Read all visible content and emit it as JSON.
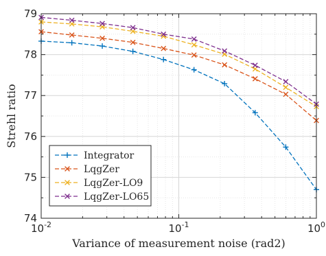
{
  "chart_data": {
    "type": "line",
    "xlabel": "Variance of measurement noise (rad2)",
    "ylabel": "Strehl ratio",
    "xscale": "log",
    "xlim": [
      0.01,
      1
    ],
    "ylim": [
      74,
      79
    ],
    "grid": "major and minor",
    "legend_position": "bottom-left",
    "x_ticks": [
      {
        "value": 0.01,
        "base": "10",
        "exp": "-2"
      },
      {
        "value": 0.1,
        "base": "10",
        "exp": "-1"
      },
      {
        "value": 1,
        "base": "10",
        "exp": "0"
      }
    ],
    "y_ticks": [
      "74",
      "75",
      "76",
      "77",
      "78",
      "79"
    ],
    "x": [
      0.01,
      0.0167,
      0.0278,
      0.0464,
      0.0774,
      0.129,
      0.215,
      0.359,
      0.599,
      1
    ],
    "series": [
      {
        "name": "Integrator",
        "color": "#0072BD",
        "marker": "plus",
        "values": [
          78.33,
          78.29,
          78.21,
          78.08,
          77.88,
          77.63,
          77.29,
          76.58,
          75.74,
          74.7
        ]
      },
      {
        "name": "LqgZer",
        "color": "#D95319",
        "marker": "x",
        "values": [
          78.56,
          78.48,
          78.4,
          78.3,
          78.15,
          77.99,
          77.75,
          77.41,
          77.03,
          76.39
        ]
      },
      {
        "name": "LqgZer-LO9",
        "color": "#EDB120",
        "marker": "x",
        "values": [
          78.8,
          78.75,
          78.68,
          78.57,
          78.45,
          78.24,
          78.01,
          77.65,
          77.2,
          76.73
        ]
      },
      {
        "name": "LqgZer-LO65",
        "color": "#7E2F8E",
        "marker": "x",
        "values": [
          78.91,
          78.84,
          78.76,
          78.66,
          78.5,
          78.38,
          78.09,
          77.74,
          77.34,
          76.79
        ]
      }
    ]
  }
}
